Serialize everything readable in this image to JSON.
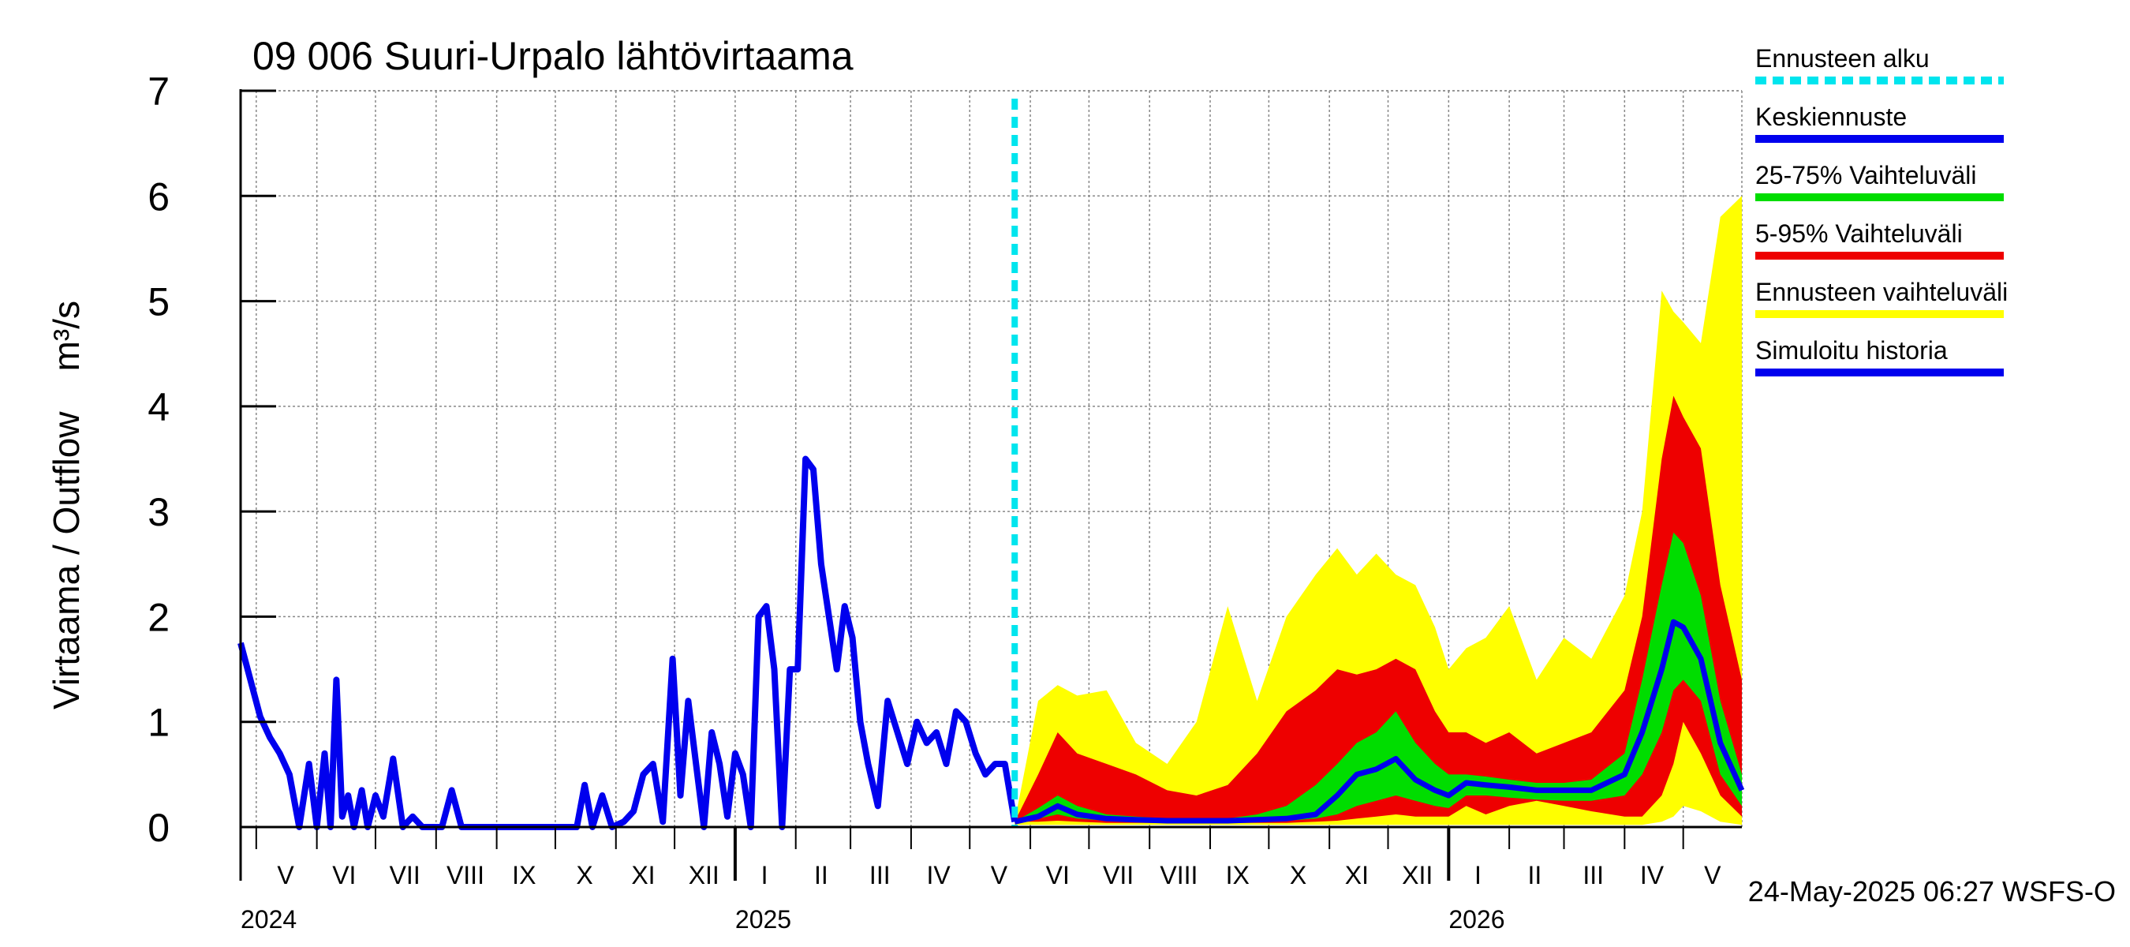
{
  "chart_data": {
    "type": "area",
    "title": "09 006 Suuri-Urpalo lähtövirtaama",
    "ylabel": "Virtaama / Outflow    m³/s",
    "xlabel": "",
    "ylim": [
      0,
      7
    ],
    "yticks": [
      0,
      1,
      2,
      3,
      4,
      5,
      6,
      7
    ],
    "grid": true,
    "legend_placement": "right",
    "timestamp": "24-May-2025 06:27 WSFS-O",
    "forecast_start": "2025-05-24",
    "x_range": [
      "2024-04-23",
      "2026-05-31"
    ],
    "month_labels": [
      {
        "label": "V",
        "date": "2024-05-16"
      },
      {
        "label": "VI",
        "date": "2024-06-15"
      },
      {
        "label": "VII",
        "date": "2024-07-16"
      },
      {
        "label": "VIII",
        "date": "2024-08-16"
      },
      {
        "label": "IX",
        "date": "2024-09-15"
      },
      {
        "label": "X",
        "date": "2024-10-16"
      },
      {
        "label": "XI",
        "date": "2024-11-15"
      },
      {
        "label": "XII",
        "date": "2024-12-16"
      },
      {
        "label": "I",
        "date": "2025-01-16"
      },
      {
        "label": "II",
        "date": "2025-02-14"
      },
      {
        "label": "III",
        "date": "2025-03-16"
      },
      {
        "label": "IV",
        "date": "2025-04-15"
      },
      {
        "label": "V",
        "date": "2025-05-16"
      },
      {
        "label": "VI",
        "date": "2025-06-15"
      },
      {
        "label": "VII",
        "date": "2025-07-16"
      },
      {
        "label": "VIII",
        "date": "2025-08-16"
      },
      {
        "label": "IX",
        "date": "2025-09-15"
      },
      {
        "label": "X",
        "date": "2025-10-16"
      },
      {
        "label": "XI",
        "date": "2025-11-15"
      },
      {
        "label": "XII",
        "date": "2025-12-16"
      },
      {
        "label": "I",
        "date": "2026-01-16"
      },
      {
        "label": "II",
        "date": "2026-02-14"
      },
      {
        "label": "III",
        "date": "2026-03-16"
      },
      {
        "label": "IV",
        "date": "2026-04-15"
      },
      {
        "label": "V",
        "date": "2026-05-16"
      }
    ],
    "year_labels": [
      {
        "label": "2024",
        "date": "2024-04-23"
      },
      {
        "label": "2025",
        "date": "2025-01-01"
      },
      {
        "label": "2026",
        "date": "2026-01-01"
      }
    ],
    "legend": [
      {
        "label": "Ennusteen alku",
        "color": "#00e5ee",
        "style": "dashed"
      },
      {
        "label": "Keskiennuste",
        "color": "#0000ee",
        "style": "line"
      },
      {
        "label": "25-75% Vaihteluväli",
        "color": "#00dd00",
        "style": "line"
      },
      {
        "label": "5-95% Vaihteluväli",
        "color": "#ee0000",
        "style": "line"
      },
      {
        "label": "Ennusteen vaihteluväli",
        "color": "#ffff00",
        "style": "line"
      },
      {
        "label": "Simuloitu historia",
        "color": "#0000ee",
        "style": "line"
      }
    ],
    "colors": {
      "history": "#0000ee",
      "median": "#0000ee",
      "p25_75": "#00dd00",
      "p5_95": "#ee0000",
      "minmax": "#ffff00",
      "forecast_start": "#00e5ee"
    },
    "series": [
      {
        "name": "Simuloitu historia",
        "x": [
          "2024-04-23",
          "2024-04-28",
          "2024-05-03",
          "2024-05-08",
          "2024-05-13",
          "2024-05-18",
          "2024-05-23",
          "2024-05-28",
          "2024-06-01",
          "2024-06-05",
          "2024-06-08",
          "2024-06-11",
          "2024-06-14",
          "2024-06-17",
          "2024-06-20",
          "2024-06-24",
          "2024-06-27",
          "2024-07-01",
          "2024-07-05",
          "2024-07-10",
          "2024-07-15",
          "2024-07-20",
          "2024-07-25",
          "2024-07-30",
          "2024-08-04",
          "2024-08-09",
          "2024-08-14",
          "2024-08-20",
          "2024-09-01",
          "2024-09-15",
          "2024-10-01",
          "2024-10-12",
          "2024-10-16",
          "2024-10-20",
          "2024-10-25",
          "2024-10-30",
          "2024-11-05",
          "2024-11-10",
          "2024-11-15",
          "2024-11-20",
          "2024-11-25",
          "2024-11-30",
          "2024-12-04",
          "2024-12-08",
          "2024-12-12",
          "2024-12-16",
          "2024-12-20",
          "2024-12-24",
          "2024-12-28",
          "2025-01-01",
          "2025-01-05",
          "2025-01-09",
          "2025-01-13",
          "2025-01-17",
          "2025-01-21",
          "2025-01-25",
          "2025-01-29",
          "2025-02-02",
          "2025-02-06",
          "2025-02-10",
          "2025-02-14",
          "2025-02-18",
          "2025-02-22",
          "2025-02-26",
          "2025-03-02",
          "2025-03-06",
          "2025-03-10",
          "2025-03-15",
          "2025-03-20",
          "2025-03-25",
          "2025-03-30",
          "2025-04-04",
          "2025-04-09",
          "2025-04-14",
          "2025-04-19",
          "2025-04-24",
          "2025-04-29",
          "2025-05-04",
          "2025-05-09",
          "2025-05-14",
          "2025-05-19",
          "2025-05-24"
        ],
        "values": [
          1.75,
          1.4,
          1.05,
          0.85,
          0.7,
          0.5,
          0.0,
          0.6,
          0.0,
          0.7,
          0.0,
          1.4,
          0.1,
          0.3,
          0.0,
          0.35,
          0.0,
          0.3,
          0.1,
          0.65,
          0.0,
          0.1,
          0.0,
          0.0,
          0.0,
          0.35,
          0.0,
          0.0,
          0.0,
          0.0,
          0.0,
          0.0,
          0.4,
          0.0,
          0.3,
          0.0,
          0.05,
          0.15,
          0.5,
          0.6,
          0.05,
          1.6,
          0.3,
          1.2,
          0.6,
          0.0,
          0.9,
          0.6,
          0.1,
          0.7,
          0.5,
          0.0,
          2.0,
          2.1,
          1.5,
          0.0,
          1.5,
          1.5,
          3.5,
          3.4,
          2.5,
          2.0,
          1.5,
          2.1,
          1.8,
          1.0,
          0.6,
          0.2,
          1.2,
          0.9,
          0.6,
          1.0,
          0.8,
          0.9,
          0.6,
          1.1,
          1.0,
          0.7,
          0.5,
          0.6,
          0.6,
          0.05
        ]
      },
      {
        "name": "Keskiennuste",
        "x": [
          "2025-05-24",
          "2025-06-05",
          "2025-06-15",
          "2025-06-25",
          "2025-07-10",
          "2025-07-25",
          "2025-08-10",
          "2025-08-25",
          "2025-09-10",
          "2025-09-25",
          "2025-10-10",
          "2025-10-25",
          "2025-11-05",
          "2025-11-15",
          "2025-11-25",
          "2025-12-05",
          "2025-12-15",
          "2025-12-25",
          "2026-01-01",
          "2026-01-10",
          "2026-01-20",
          "2026-02-01",
          "2026-02-15",
          "2026-03-01",
          "2026-03-15",
          "2026-04-01",
          "2026-04-10",
          "2026-04-20",
          "2026-04-26",
          "2026-05-01",
          "2026-05-10",
          "2026-05-20",
          "2026-05-31"
        ],
        "values": [
          0.05,
          0.1,
          0.2,
          0.12,
          0.08,
          0.07,
          0.06,
          0.06,
          0.06,
          0.07,
          0.08,
          0.12,
          0.3,
          0.5,
          0.55,
          0.65,
          0.45,
          0.35,
          0.3,
          0.42,
          0.4,
          0.38,
          0.35,
          0.35,
          0.35,
          0.5,
          0.9,
          1.5,
          1.95,
          1.9,
          1.6,
          0.8,
          0.35
        ]
      },
      {
        "name": "25-75% Vaihteluväli",
        "x": [
          "2025-05-24",
          "2025-06-05",
          "2025-06-15",
          "2025-06-25",
          "2025-07-10",
          "2025-07-25",
          "2025-08-10",
          "2025-08-25",
          "2025-09-10",
          "2025-09-25",
          "2025-10-10",
          "2025-10-25",
          "2025-11-05",
          "2025-11-15",
          "2025-11-25",
          "2025-12-05",
          "2025-12-15",
          "2025-12-25",
          "2026-01-01",
          "2026-01-10",
          "2026-01-20",
          "2026-02-01",
          "2026-02-15",
          "2026-03-01",
          "2026-03-15",
          "2026-04-01",
          "2026-04-10",
          "2026-04-20",
          "2026-04-26",
          "2026-05-01",
          "2026-05-10",
          "2026-05-20",
          "2026-05-31"
        ],
        "lower": [
          0.05,
          0.08,
          0.12,
          0.08,
          0.06,
          0.05,
          0.05,
          0.05,
          0.05,
          0.05,
          0.06,
          0.08,
          0.12,
          0.2,
          0.25,
          0.3,
          0.25,
          0.2,
          0.18,
          0.3,
          0.3,
          0.28,
          0.26,
          0.25,
          0.25,
          0.3,
          0.5,
          0.9,
          1.3,
          1.4,
          1.2,
          0.5,
          0.2
        ],
        "upper": [
          0.05,
          0.18,
          0.3,
          0.2,
          0.12,
          0.1,
          0.08,
          0.08,
          0.08,
          0.12,
          0.2,
          0.4,
          0.6,
          0.8,
          0.9,
          1.1,
          0.8,
          0.6,
          0.5,
          0.5,
          0.48,
          0.45,
          0.42,
          0.42,
          0.45,
          0.7,
          1.4,
          2.3,
          2.8,
          2.7,
          2.2,
          1.2,
          0.5
        ]
      },
      {
        "name": "5-95% Vaihteluväli",
        "x": [
          "2025-05-24",
          "2025-06-05",
          "2025-06-15",
          "2025-06-25",
          "2025-07-10",
          "2025-07-25",
          "2025-08-10",
          "2025-08-25",
          "2025-09-10",
          "2025-09-25",
          "2025-10-10",
          "2025-10-25",
          "2025-11-05",
          "2025-11-15",
          "2025-11-25",
          "2025-12-05",
          "2025-12-15",
          "2025-12-25",
          "2026-01-01",
          "2026-01-10",
          "2026-01-20",
          "2026-02-01",
          "2026-02-15",
          "2026-03-01",
          "2026-03-15",
          "2026-04-01",
          "2026-04-10",
          "2026-04-20",
          "2026-04-26",
          "2026-05-01",
          "2026-05-10",
          "2026-05-20",
          "2026-05-31"
        ],
        "lower": [
          0.05,
          0.05,
          0.06,
          0.05,
          0.04,
          0.04,
          0.04,
          0.04,
          0.04,
          0.04,
          0.04,
          0.05,
          0.06,
          0.08,
          0.1,
          0.12,
          0.1,
          0.1,
          0.1,
          0.2,
          0.12,
          0.2,
          0.25,
          0.2,
          0.15,
          0.1,
          0.1,
          0.3,
          0.6,
          1.0,
          0.7,
          0.3,
          0.1
        ],
        "upper": [
          0.05,
          0.5,
          0.9,
          0.7,
          0.6,
          0.5,
          0.35,
          0.3,
          0.4,
          0.7,
          1.1,
          1.3,
          1.5,
          1.45,
          1.5,
          1.6,
          1.5,
          1.1,
          0.9,
          0.9,
          0.8,
          0.9,
          0.7,
          0.8,
          0.9,
          1.3,
          2.0,
          3.5,
          4.1,
          3.9,
          3.6,
          2.3,
          1.4
        ]
      },
      {
        "name": "Ennusteen vaihteluväli",
        "x": [
          "2025-05-24",
          "2025-06-05",
          "2025-06-15",
          "2025-06-25",
          "2025-07-10",
          "2025-07-25",
          "2025-08-10",
          "2025-08-25",
          "2025-09-10",
          "2025-09-25",
          "2025-10-10",
          "2025-10-25",
          "2025-11-05",
          "2025-11-15",
          "2025-11-25",
          "2025-12-05",
          "2025-12-15",
          "2025-12-25",
          "2026-01-01",
          "2026-01-10",
          "2026-01-20",
          "2026-02-01",
          "2026-02-15",
          "2026-03-01",
          "2026-03-15",
          "2026-04-01",
          "2026-04-10",
          "2026-04-20",
          "2026-04-26",
          "2026-05-01",
          "2026-05-10",
          "2026-05-20",
          "2026-05-31"
        ],
        "lower": [
          0.02,
          0.02,
          0.02,
          0.02,
          0.02,
          0.02,
          0.02,
          0.02,
          0.02,
          0.02,
          0.02,
          0.02,
          0.02,
          0.02,
          0.02,
          0.02,
          0.02,
          0.02,
          0.02,
          0.02,
          0.02,
          0.02,
          0.02,
          0.02,
          0.02,
          0.02,
          0.02,
          0.05,
          0.1,
          0.2,
          0.15,
          0.05,
          0.02
        ],
        "upper": [
          0.05,
          1.2,
          1.35,
          1.25,
          1.3,
          0.8,
          0.6,
          1.0,
          2.1,
          1.2,
          2.0,
          2.4,
          2.65,
          2.4,
          2.6,
          2.4,
          2.3,
          1.9,
          1.5,
          1.7,
          1.8,
          2.1,
          1.4,
          1.8,
          1.6,
          2.2,
          3.0,
          5.1,
          4.9,
          4.8,
          4.6,
          5.8,
          6.0
        ]
      }
    ]
  }
}
